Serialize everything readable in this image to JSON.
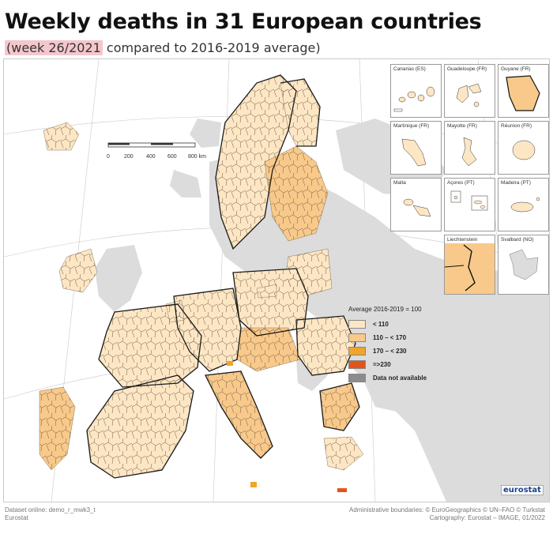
{
  "title": "Weekly deaths in 31 European countries",
  "subtitle": {
    "highlight": "(week 26/2021",
    "rest": " compared to 2016-2019 average)"
  },
  "colors": {
    "sea": "#ffffff",
    "land_nonmember": "#dcdcdc",
    "cat_lt110": "#fde6c4",
    "cat_110_170": "#f8c98a",
    "cat_170_230": "#f0a52a",
    "cat_ge230": "#e0561a",
    "not_available": "#8c8c8c",
    "border": "#222222",
    "title_highlight": "#f4c7cd"
  },
  "scalebar": {
    "ticks": [
      "0",
      "200",
      "400",
      "600",
      "800 km"
    ]
  },
  "insets": [
    {
      "label": "Canarias (ES)",
      "scale": [
        "0",
        "100"
      ]
    },
    {
      "label": "Guadeloupe (FR)",
      "scale": [
        "0",
        "25"
      ]
    },
    {
      "label": "Guyane (FR)",
      "scale": [
        "0",
        "100"
      ]
    },
    {
      "label": "Martinique (FR)",
      "scale": [
        "0",
        "20"
      ]
    },
    {
      "label": "Mayotte (FR)",
      "scale": [
        "0",
        "15"
      ]
    },
    {
      "label": "Réunion (FR)",
      "scale": [
        "0",
        "20"
      ]
    },
    {
      "label": "Malta",
      "scale": [
        "0",
        "10"
      ]
    },
    {
      "label": "Açores (PT)",
      "scale": [
        "0",
        "50"
      ]
    },
    {
      "label": "Madeira (PT)",
      "scale": [
        "0",
        "20"
      ]
    },
    {
      "label": "Liechtenstein",
      "scale": [
        "0",
        "5"
      ]
    },
    {
      "label": "Svalbard (NO)",
      "scale": [
        "0",
        "100"
      ]
    }
  ],
  "legend": {
    "title": "Average 2016-2019 = 100",
    "items": [
      {
        "label": "< 110",
        "color": "#fde6c4"
      },
      {
        "label": "110 – < 170",
        "color": "#f8c98a"
      },
      {
        "label": "170 – < 230",
        "color": "#f0a52a"
      },
      {
        "label": "=>230",
        "color": "#e0561a"
      },
      {
        "label": "Data not available",
        "color": "#8c8c8c"
      }
    ]
  },
  "logo": "eurostat",
  "footer": {
    "dataset": "Dataset online: demo_r_mwk3_t",
    "source": "Eurostat",
    "boundaries": "Administrative boundaries: © EuroGeographics © UN–FAO © Turkstat",
    "cartography": "Cartography: Eurostat – IMAGE, 01/2022"
  }
}
